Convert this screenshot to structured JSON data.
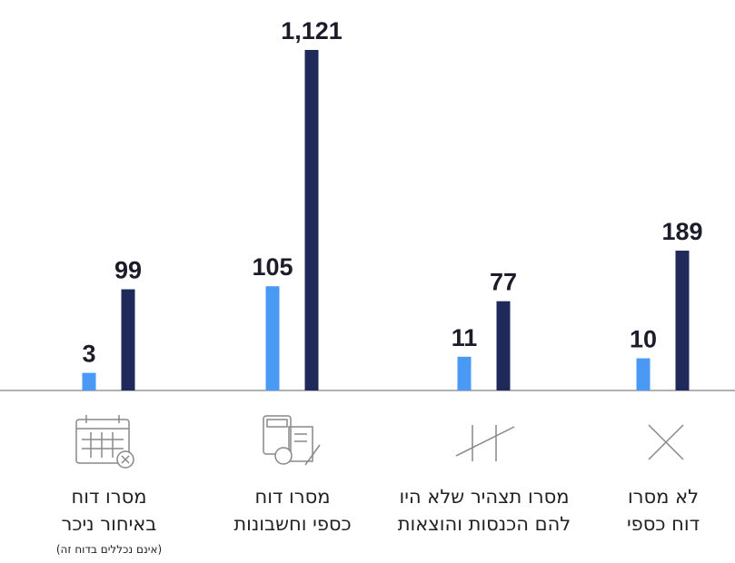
{
  "chart_data": {
    "type": "bar",
    "yscale": "sqrt",
    "categories": [
      "מסרו דוח\nבאיחור ניכר",
      "מסרו דוח\nכספי וחשבונות",
      "מסרו תצהיר שלא היו\nלהם הכנסות והוצאות",
      "לא מסרו\nדוח כספי"
    ],
    "note": "(אינם נכללים בדוח זה)",
    "series": [
      {
        "color": "#4a9af5",
        "values": [
          3,
          105,
          11,
          10
        ]
      },
      {
        "color": "#1f2a5a",
        "values": [
          99,
          1121,
          77,
          189
        ],
        "value_labels": [
          "99",
          "1,121",
          "77",
          "189"
        ]
      }
    ],
    "ylim": [
      0,
      1121
    ]
  }
}
